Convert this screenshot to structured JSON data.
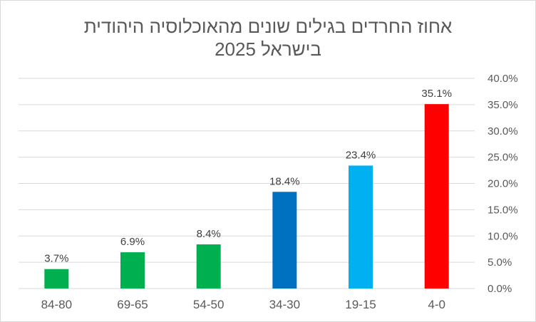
{
  "chart_data": {
    "type": "bar",
    "title_line1": "אחוז החרדים בגילים שונים מהאוכלוסיה היהודית",
    "title_line2": "בישראל 2025",
    "categories": [
      "84-80",
      "69-65",
      "54-50",
      "34-30",
      "19-15",
      "4-0"
    ],
    "values": [
      3.7,
      6.9,
      8.4,
      18.4,
      23.4,
      35.1
    ],
    "data_labels": [
      "3.7%",
      "6.9%",
      "8.4%",
      "18.4%",
      "23.4%",
      "35.1%"
    ],
    "colors": [
      "#00b050",
      "#00b050",
      "#00b050",
      "#0070c0",
      "#00b0f0",
      "#ff0000"
    ],
    "ylim": [
      0,
      40
    ],
    "y_ticks": [
      0,
      5,
      10,
      15,
      20,
      25,
      30,
      35,
      40
    ],
    "y_tick_labels": [
      "0.0%",
      "5.0%",
      "10.0%",
      "15.0%",
      "20.0%",
      "25.0%",
      "30.0%",
      "35.0%",
      "40.0%"
    ],
    "y_axis_side": "right",
    "grid": true,
    "xlabel": "",
    "ylabel": ""
  }
}
